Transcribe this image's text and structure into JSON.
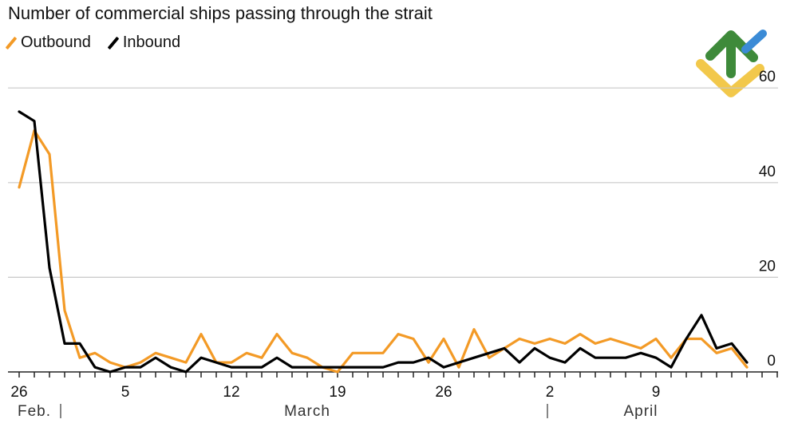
{
  "colors": {
    "outbound": "#F39A26",
    "inbound": "#000000",
    "grid": "#c8c8c8",
    "axis": "#222222"
  },
  "logo": {
    "name": "brand-logo"
  },
  "chart_data": {
    "type": "line",
    "title": "Number of commercial ships passing through the strait",
    "xlabel": "",
    "ylabel": "",
    "ylim": [
      0,
      60
    ],
    "yticks": [
      {
        "value": 0,
        "label": "0"
      },
      {
        "value": 20,
        "label": "20"
      },
      {
        "value": 40,
        "label": "40"
      },
      {
        "value": 60,
        "label": "60"
      }
    ],
    "x_days": 51,
    "xticks": [
      {
        "day": 0,
        "label": "26"
      },
      {
        "day": 7,
        "label": "5"
      },
      {
        "day": 14,
        "label": "12"
      },
      {
        "day": 21,
        "label": "19"
      },
      {
        "day": 28,
        "label": "26"
      },
      {
        "day": 35,
        "label": "2"
      },
      {
        "day": 42,
        "label": "9"
      }
    ],
    "months": [
      {
        "day": 1,
        "label": "Feb.",
        "sep_after": true
      },
      {
        "day": 19,
        "label": "March"
      },
      {
        "day": 34,
        "label": "",
        "sep_after": true
      },
      {
        "day": 41,
        "label": "April"
      }
    ],
    "series": [
      {
        "name": "Outbound",
        "color_key": "outbound",
        "values": [
          39,
          51,
          46,
          13,
          3,
          4,
          2,
          1,
          2,
          4,
          3,
          2,
          8,
          2,
          2,
          4,
          3,
          8,
          4,
          3,
          1,
          0,
          4,
          4,
          4,
          8,
          7,
          2,
          7,
          1,
          9,
          3,
          5,
          7,
          6,
          7,
          6,
          8,
          6,
          7,
          6,
          5,
          7,
          3,
          7,
          7,
          4,
          5,
          1
        ]
      },
      {
        "name": "Inbound",
        "color_key": "inbound",
        "values": [
          55,
          53,
          22,
          6,
          6,
          1,
          0,
          1,
          1,
          3,
          1,
          0,
          3,
          2,
          1,
          1,
          1,
          3,
          1,
          1,
          1,
          1,
          1,
          1,
          1,
          2,
          2,
          3,
          1,
          2,
          3,
          4,
          5,
          2,
          5,
          3,
          2,
          5,
          3,
          3,
          3,
          4,
          3,
          1,
          7,
          12,
          5,
          6,
          2
        ]
      }
    ]
  }
}
